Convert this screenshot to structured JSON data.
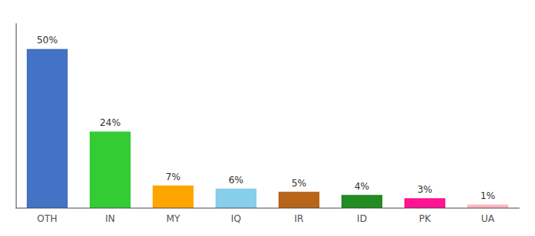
{
  "chart_data": {
    "type": "bar",
    "categories": [
      "OTH",
      "IN",
      "MY",
      "IQ",
      "IR",
      "ID",
      "PK",
      "UA"
    ],
    "values": [
      50,
      24,
      7,
      6,
      5,
      4,
      3,
      1
    ],
    "value_labels": [
      "50%",
      "24%",
      "7%",
      "6%",
      "5%",
      "4%",
      "3%",
      "1%"
    ],
    "colors": [
      "#4472c4",
      "#33cc33",
      "#ffa500",
      "#87ceeb",
      "#b8651a",
      "#228b22",
      "#ff1493",
      "#ffb6c1"
    ],
    "ylim": [
      0,
      58
    ],
    "yticks": [],
    "grid": false,
    "data_labels": true,
    "tick_labels": "x"
  }
}
